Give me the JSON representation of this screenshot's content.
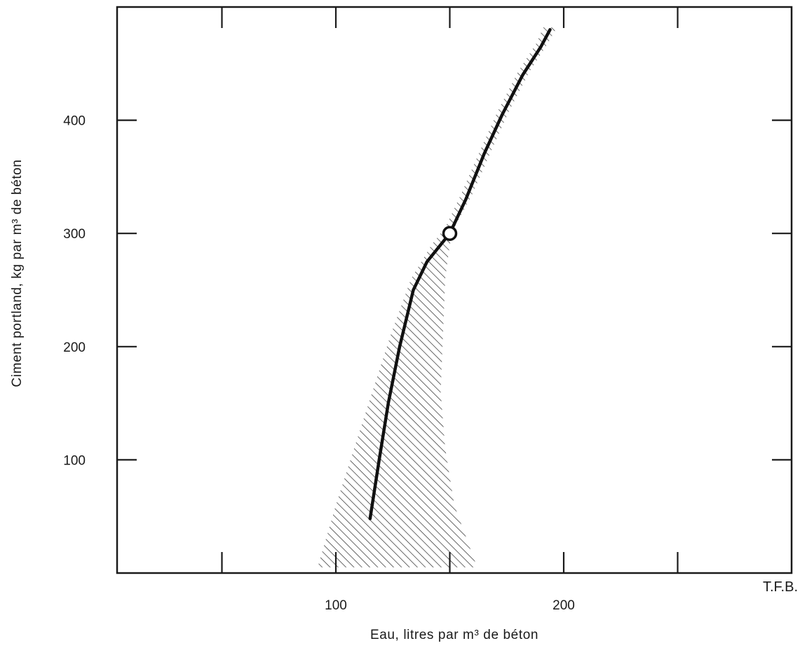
{
  "chart_data": {
    "type": "line",
    "xlabel": "Eau, litres par m³ de béton",
    "ylabel": "Ciment portland, kg par m³ de béton",
    "xlim": [
      4,
      300
    ],
    "ylim": [
      0,
      500
    ],
    "x_ticks": [
      50,
      100,
      150,
      200,
      250
    ],
    "x_tick_labels": [
      "",
      "100",
      "",
      "200",
      ""
    ],
    "y_ticks": [
      100,
      200,
      300,
      400
    ],
    "y_tick_labels": [
      "100",
      "200",
      "300",
      "400"
    ],
    "grid": false,
    "credit": "T.F.B.",
    "series": [
      {
        "x": [
          115,
          119,
          123,
          128,
          134,
          140,
          146,
          150,
          157,
          165,
          173,
          182,
          190,
          194
        ],
        "y": [
          48,
          100,
          150,
          200,
          250,
          275,
          290,
          300,
          330,
          370,
          405,
          440,
          465,
          480
        ]
      }
    ],
    "highlight_point": {
      "x": 150,
      "y": 300
    },
    "band": {
      "left_x": [
        92,
        100,
        108,
        116,
        124,
        133,
        142,
        148,
        155,
        163,
        171,
        180,
        188,
        191
      ],
      "right_x": [
        162,
        152,
        148,
        146,
        147,
        148,
        150,
        152,
        160,
        168,
        176,
        185,
        193,
        197
      ],
      "y": [
        5,
        60,
        110,
        160,
        210,
        260,
        290,
        305,
        335,
        372,
        408,
        443,
        468,
        482
      ]
    }
  }
}
